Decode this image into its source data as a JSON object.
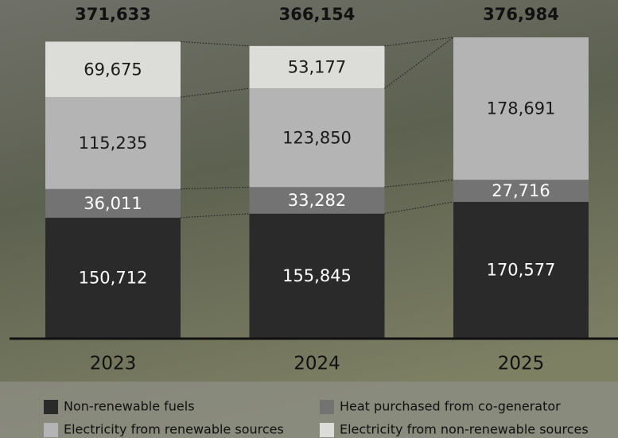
{
  "chart_data": {
    "type": "stacked-bar",
    "categories": [
      "2023",
      "2024",
      "2025"
    ],
    "series": [
      {
        "name": "Non-renewable fuels",
        "color": "#2a2a2a",
        "label_color": "#ffffff",
        "values": [
          150712,
          155845,
          170577
        ],
        "value_labels": [
          "150,712",
          "155,845",
          "170,577"
        ]
      },
      {
        "name": "Heat purchased from co-generator",
        "color": "#737373",
        "label_color": "#ffffff",
        "values": [
          36011,
          33282,
          27716
        ],
        "value_labels": [
          "36,011",
          "33,282",
          "27,716"
        ]
      },
      {
        "name": "Electricity from renewable sources",
        "color": "#b4b4b4",
        "label_color": "#1a1a1a",
        "values": [
          115235,
          123850,
          178691
        ],
        "value_labels": [
          "115,235",
          "123,850",
          "178,691"
        ]
      },
      {
        "name": "Electricity from non-renewable sources",
        "color": "#dcdcd8",
        "label_color": "#1a1a1a",
        "values": [
          69675,
          53177,
          null
        ],
        "value_labels": [
          "69,675",
          "53,177",
          null
        ]
      }
    ],
    "totals": {
      "values": [
        371633,
        366154,
        376984
      ],
      "value_labels": [
        "371,633",
        "366,154",
        "376,984"
      ]
    }
  }
}
